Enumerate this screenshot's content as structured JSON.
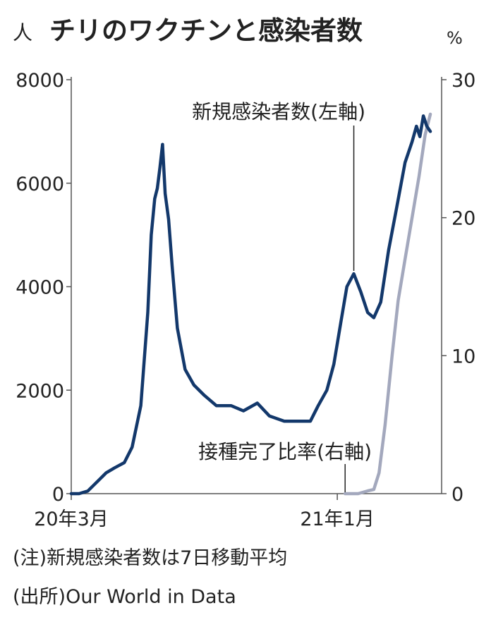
{
  "chart_data": {
    "type": "line",
    "title": "チリのワクチンと感染者数",
    "y_left_unit": "人",
    "y_right_unit": "%",
    "y_left_ticks": [
      "0",
      "2000",
      "4000",
      "6000",
      "8000"
    ],
    "y_right_ticks": [
      "0",
      "10",
      "20",
      "30"
    ],
    "x_tick_labels": [
      "20年3月",
      "21年1月"
    ],
    "ylim_left": [
      0,
      8000
    ],
    "ylim_right": [
      0,
      30
    ],
    "grid": false,
    "series": [
      {
        "name": "新規感染者数(左軸)",
        "axis": "left",
        "color": "#13386b",
        "x": [
          "2020-03-01",
          "2020-03-10",
          "2020-03-20",
          "2020-04-01",
          "2020-04-10",
          "2020-04-20",
          "2020-05-01",
          "2020-05-10",
          "2020-05-20",
          "2020-05-28",
          "2020-06-01",
          "2020-06-05",
          "2020-06-08",
          "2020-06-11",
          "2020-06-14",
          "2020-06-17",
          "2020-06-21",
          "2020-06-25",
          "2020-07-01",
          "2020-07-10",
          "2020-07-20",
          "2020-08-01",
          "2020-08-15",
          "2020-09-01",
          "2020-09-15",
          "2020-10-01",
          "2020-10-15",
          "2020-11-01",
          "2020-11-15",
          "2020-12-01",
          "2020-12-10",
          "2020-12-20",
          "2020-12-28",
          "2021-01-05",
          "2021-01-12",
          "2021-01-20",
          "2021-01-28",
          "2021-02-05",
          "2021-02-12",
          "2021-02-20",
          "2021-03-01",
          "2021-03-10",
          "2021-03-20",
          "2021-03-28",
          "2021-04-02",
          "2021-04-06",
          "2021-04-10",
          "2021-04-14",
          "2021-04-18"
        ],
        "y": [
          0,
          0,
          50,
          250,
          400,
          500,
          600,
          900,
          1700,
          3500,
          5000,
          5700,
          5900,
          6300,
          6750,
          5800,
          5300,
          4400,
          3200,
          2400,
          2100,
          1900,
          1700,
          1700,
          1600,
          1750,
          1500,
          1400,
          1400,
          1400,
          1700,
          2000,
          2500,
          3300,
          4000,
          4250,
          3900,
          3500,
          3400,
          3700,
          4700,
          5500,
          6400,
          6800,
          7100,
          6900,
          7300,
          7100,
          7000
        ]
      },
      {
        "name": "接種完了比率(右軸)",
        "axis": "right",
        "color": "#a3a8bd",
        "x": [
          "2021-01-10",
          "2021-01-25",
          "2021-02-05",
          "2021-02-12",
          "2021-02-18",
          "2021-02-25",
          "2021-03-05",
          "2021-03-12",
          "2021-03-20",
          "2021-03-28",
          "2021-04-05",
          "2021-04-12",
          "2021-04-18"
        ],
        "y": [
          0,
          0,
          0.2,
          0.3,
          1.5,
          5,
          10,
          14,
          17,
          20,
          23,
          26,
          27.5
        ]
      }
    ]
  },
  "notes": {
    "note1": "(注)新規感染者数は7日移動平均",
    "note2": "(出所)Our World in Data"
  }
}
